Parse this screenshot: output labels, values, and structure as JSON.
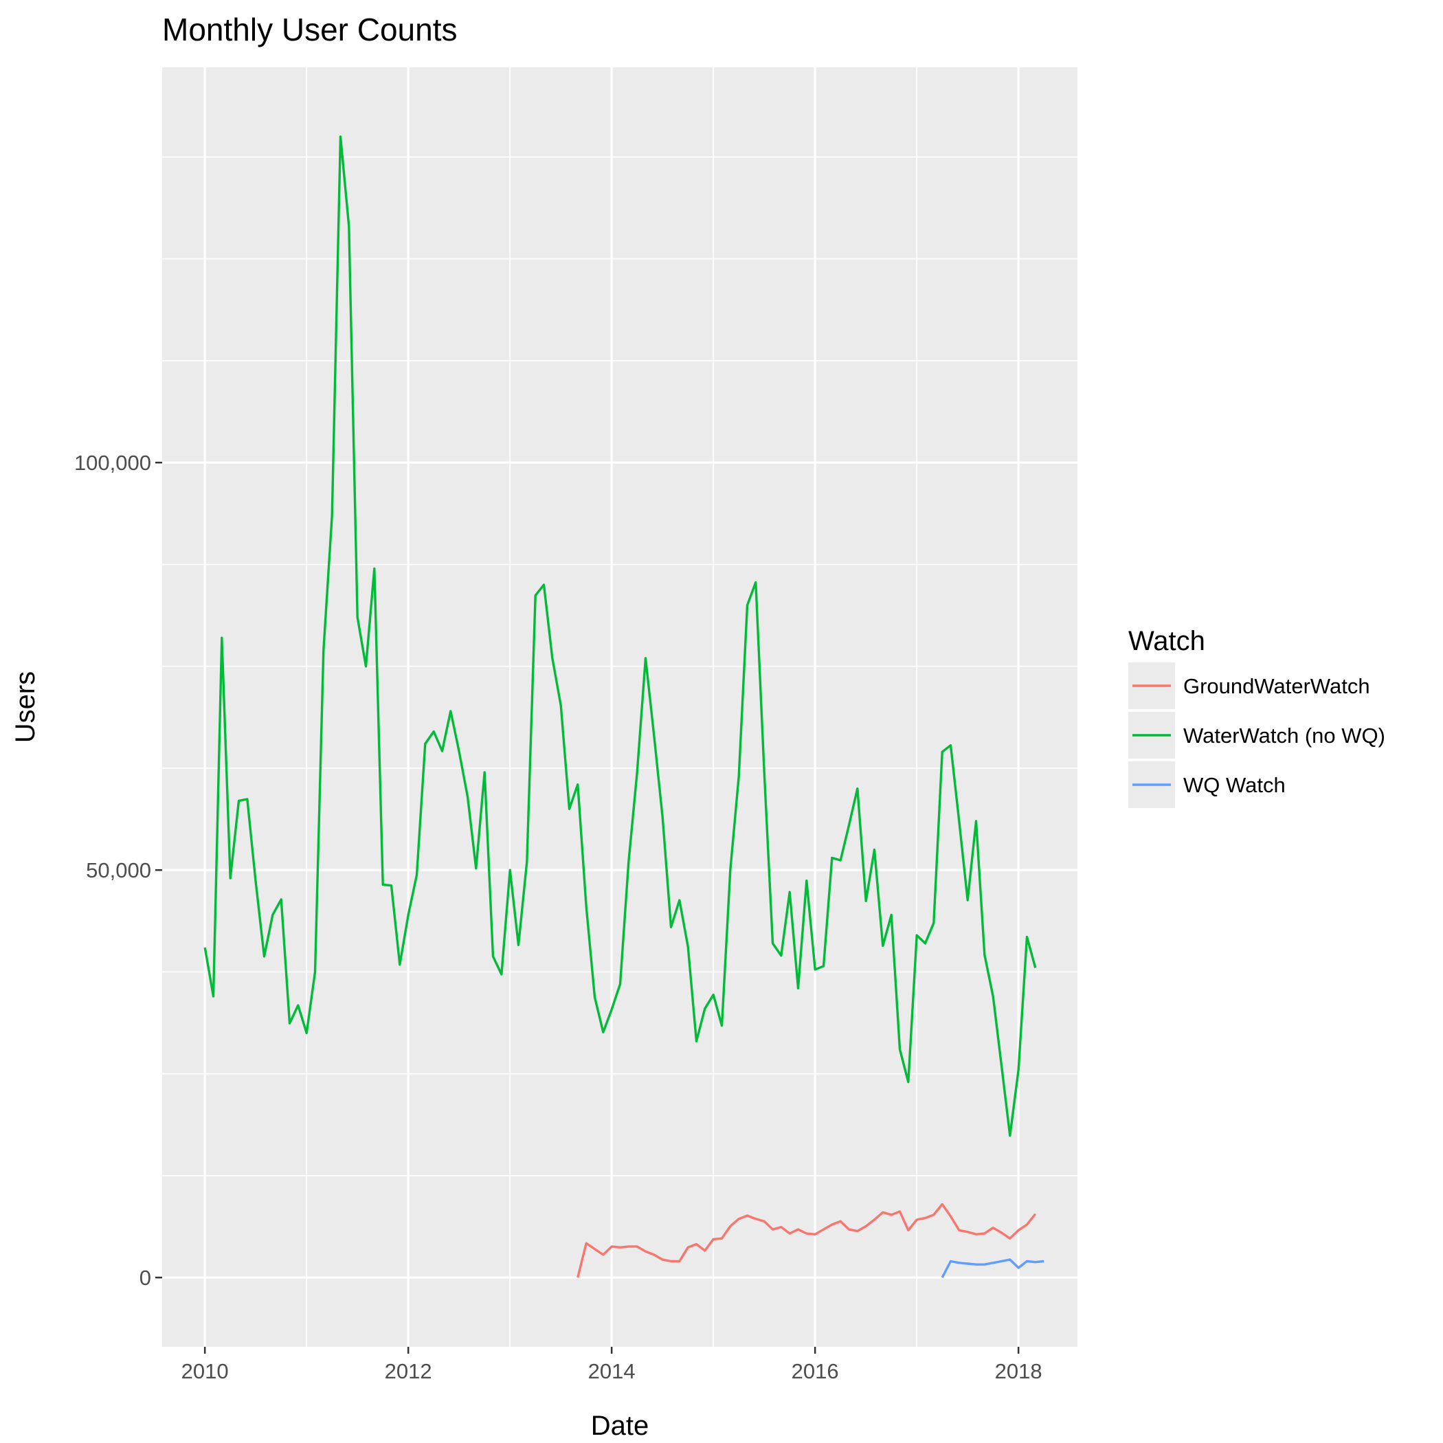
{
  "chart_data": {
    "type": "line",
    "title": "Monthly User Counts",
    "xlabel": "Date",
    "ylabel": "Users",
    "xlim": [
      2009.58,
      2018.58
    ],
    "ylim": [
      -8500,
      148500
    ],
    "x_ticks": [
      2010,
      2012,
      2014,
      2016,
      2018
    ],
    "x_tick_labels": [
      "2010",
      "2012",
      "2014",
      "2016",
      "2018"
    ],
    "y_ticks": [
      0,
      50000,
      100000
    ],
    "y_tick_labels": [
      "0",
      "50,000",
      "100,000"
    ],
    "grid": true,
    "legend_position": "right",
    "legend": {
      "title": "Watch",
      "entries": [
        "GroundWaterWatch",
        "WaterWatch (no WQ)",
        "WQ Watch"
      ]
    },
    "series": [
      {
        "name": "GroundWaterWatch",
        "color": "#f8766d",
        "start": "2013-09",
        "values": [
          0,
          4200,
          3500,
          2800,
          3800,
          3700,
          3800,
          3800,
          3200,
          2800,
          2200,
          2000,
          2000,
          3700,
          4100,
          3300,
          4700,
          4800,
          6300,
          7200,
          7600,
          7200,
          6900,
          5900,
          6200,
          5400,
          5900,
          5400,
          5300,
          5900,
          6500,
          6900,
          5900,
          5700,
          6300,
          7100,
          8000,
          7700,
          8100,
          5800,
          7100,
          7300,
          7700,
          9000,
          7500,
          5800,
          5600,
          5300,
          5400,
          6100,
          5500,
          4800,
          5800,
          6500,
          7800
        ]
      },
      {
        "name": "WaterWatch (no WQ)",
        "color": "#00ba38",
        "start": "2010-01",
        "values": [
          40500,
          34500,
          78500,
          49000,
          58500,
          58700,
          48500,
          39400,
          44500,
          46400,
          31200,
          33400,
          30000,
          37500,
          77000,
          93500,
          140000,
          129000,
          81000,
          75000,
          87000,
          48200,
          48100,
          38400,
          44500,
          49400,
          65500,
          67000,
          64600,
          69500,
          64500,
          59000,
          50200,
          62000,
          39400,
          37200,
          50000,
          40800,
          51000,
          83700,
          85000,
          76000,
          70200,
          57500,
          60500,
          45500,
          34400,
          30100,
          32900,
          36000,
          51000,
          62000,
          76000,
          66500,
          56500,
          43000,
          46300,
          40600,
          29000,
          33000,
          34700,
          30900,
          50000,
          61500,
          82500,
          85300,
          62000,
          41000,
          39500,
          47300,
          35500,
          48700,
          37800,
          38200,
          51500,
          51200,
          55500,
          60000,
          46200,
          52500,
          40700,
          44500,
          28000,
          24000,
          42000,
          41000,
          43500,
          64500,
          65300,
          56000,
          46300,
          56000,
          39600,
          34500,
          26000,
          17400,
          25500,
          41800,
          38000
        ]
      },
      {
        "name": "WQ Watch",
        "color": "#619cff",
        "start": "2017-04",
        "values": [
          0,
          2000,
          1800,
          1700,
          1600,
          1600,
          1800,
          2000,
          2200,
          1200,
          2000,
          1900,
          2000
        ]
      }
    ]
  }
}
